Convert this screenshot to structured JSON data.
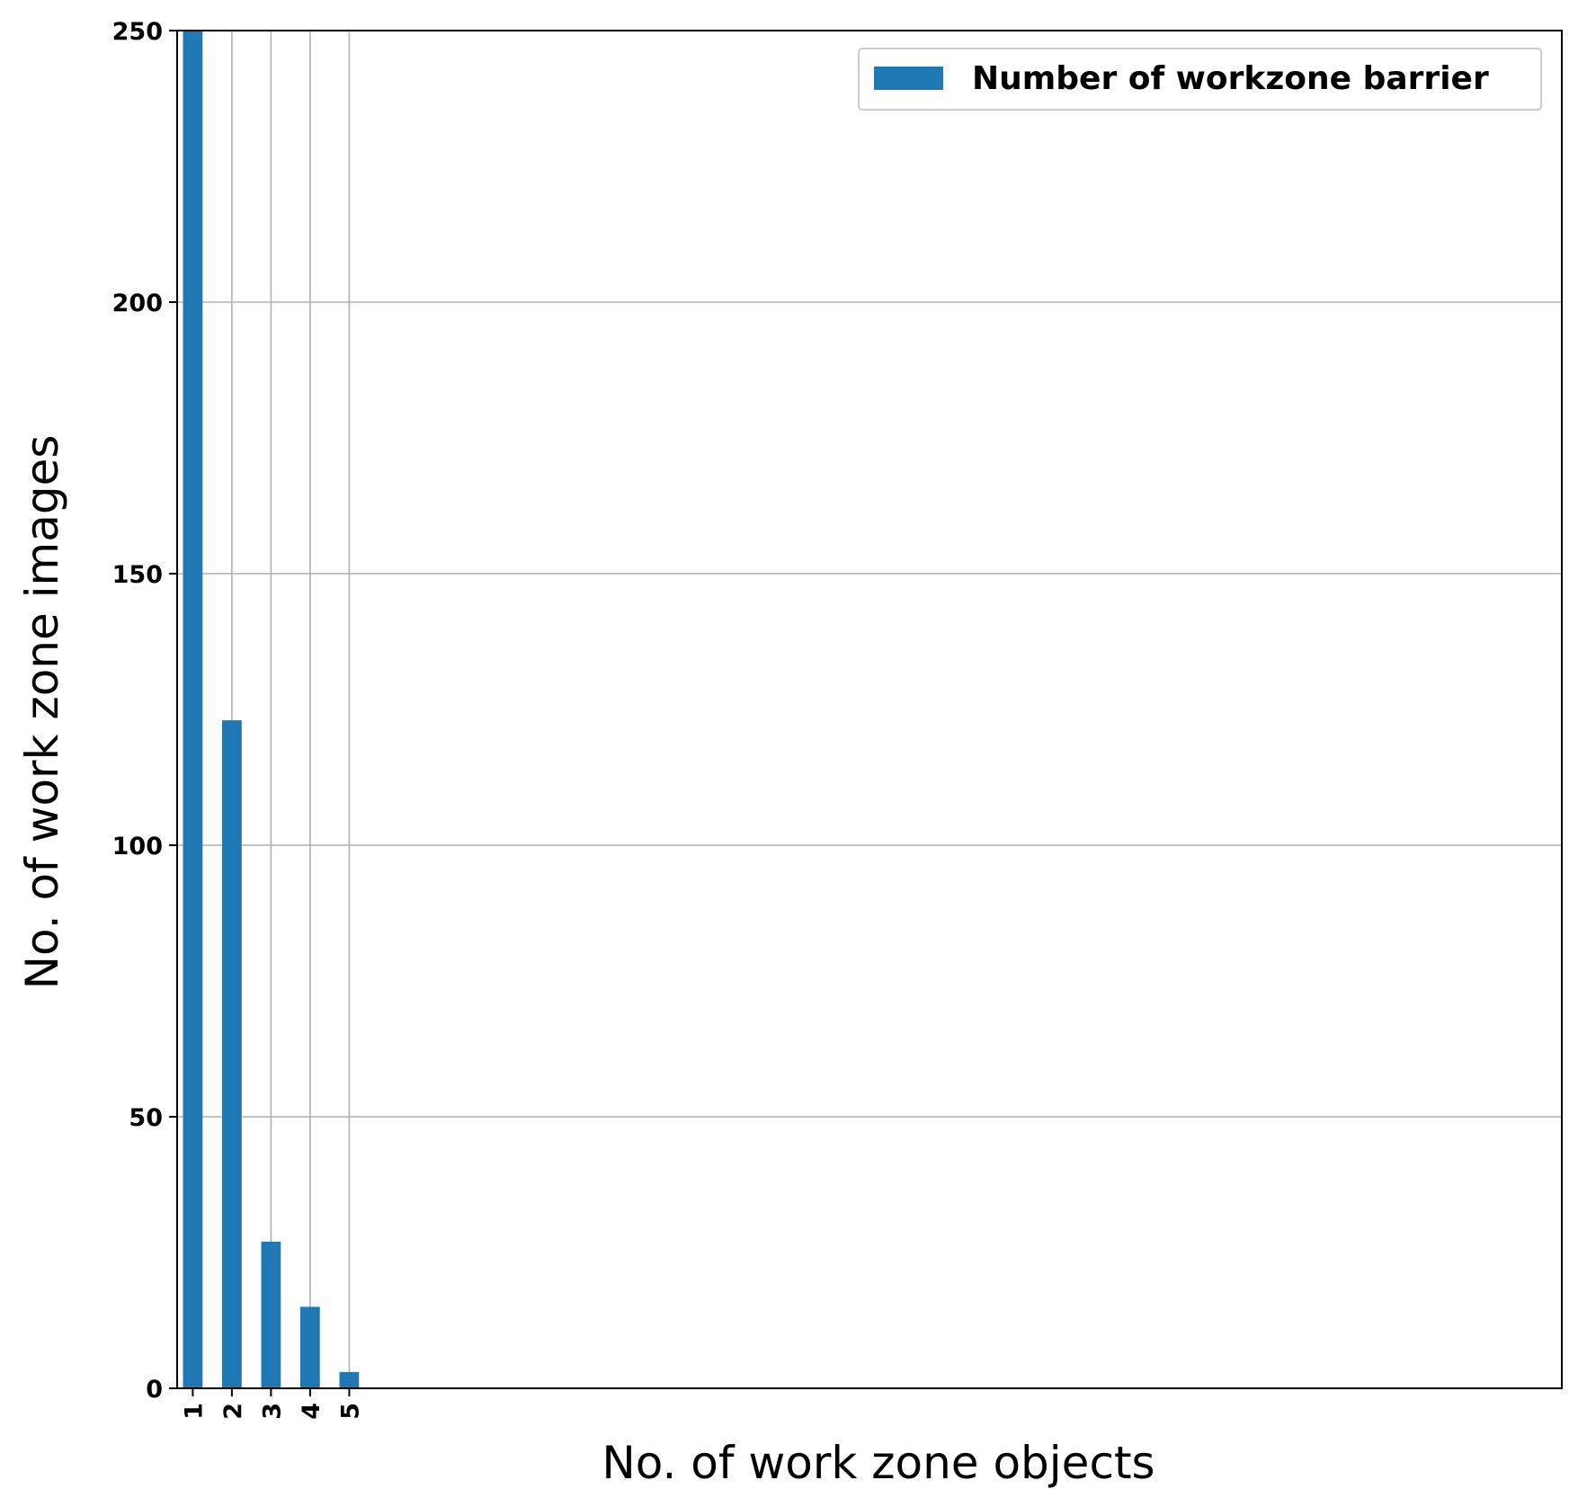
{
  "chart_data": {
    "type": "bar",
    "categories": [
      "1",
      "2",
      "3",
      "4",
      "5"
    ],
    "x": [
      1,
      2,
      3,
      4,
      5
    ],
    "series": [
      {
        "name": "Number of workzone barrier",
        "values": [
          250,
          123,
          27,
          15,
          3
        ]
      }
    ],
    "xlabel": "No. of work zone objects",
    "ylabel": "No. of work zone images",
    "xlim": [
      0.6,
      36
    ],
    "ylim": [
      0,
      250
    ],
    "yticks": [
      0,
      50,
      100,
      150,
      200,
      250
    ],
    "grid": true,
    "legend_position": "top-right",
    "bar_color": "#1f77b4",
    "grid_color": "#b0b0b0"
  }
}
